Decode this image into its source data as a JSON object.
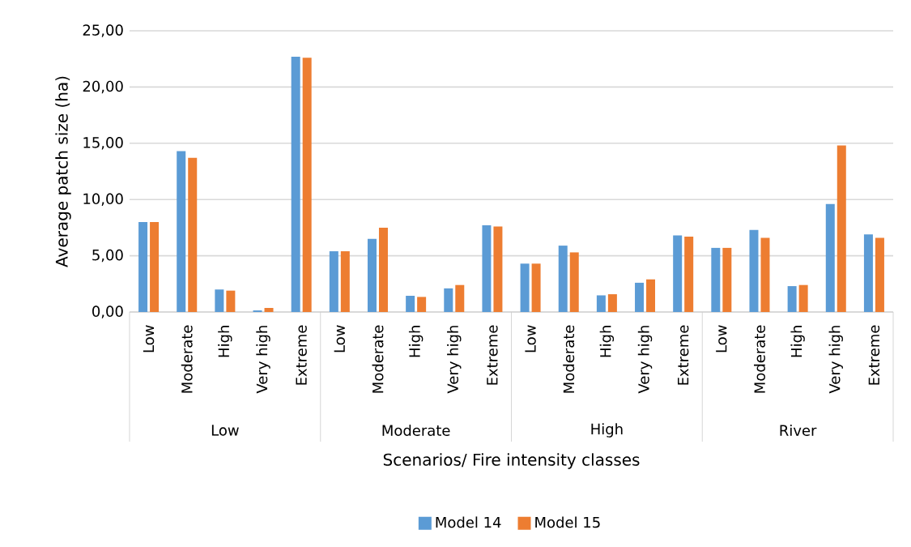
{
  "chart_data": {
    "type": "bar",
    "xlabel": "Scenarios/ Fire intensity classes",
    "ylabel": "Average patch size (ha)",
    "categories": [
      "Low",
      "Moderate",
      "High",
      "Very high",
      "Extreme",
      "Low",
      "Moderate",
      "High",
      "Very high",
      "Extreme",
      "Low",
      "Moderate",
      "High",
      "Very high",
      "Extreme",
      "Low",
      "Moderate",
      "High",
      "Very high",
      "Extreme"
    ],
    "series": [
      {
        "name": "Model 14",
        "color": "#5b9bd5",
        "values": [
          8.0,
          14.3,
          2.0,
          0.14,
          22.7,
          5.4,
          6.5,
          1.44,
          2.1,
          7.7,
          4.3,
          5.9,
          1.48,
          2.6,
          6.8,
          5.7,
          7.3,
          2.3,
          9.6,
          6.9
        ]
      },
      {
        "name": "Model 15",
        "color": "#ed7d31",
        "values": [
          8.0,
          13.7,
          1.9,
          0.36,
          22.6,
          5.4,
          7.5,
          1.34,
          2.4,
          7.6,
          4.3,
          5.3,
          1.58,
          2.9,
          6.7,
          5.7,
          6.6,
          2.4,
          14.8,
          6.6
        ]
      }
    ],
    "annotations": [
      "Low",
      "Moderate",
      "High",
      "River"
    ],
    "ylim": [
      0,
      25
    ],
    "yticks": [
      {
        "value": 0,
        "label": "0,00"
      },
      {
        "value": 5,
        "label": "5,00"
      },
      {
        "value": 10,
        "label": "10,00"
      },
      {
        "value": 15,
        "label": "15,00"
      },
      {
        "value": 20,
        "label": "20,00"
      },
      {
        "value": 25,
        "label": "25,00"
      }
    ],
    "grid": "y",
    "legend": "bottom"
  }
}
